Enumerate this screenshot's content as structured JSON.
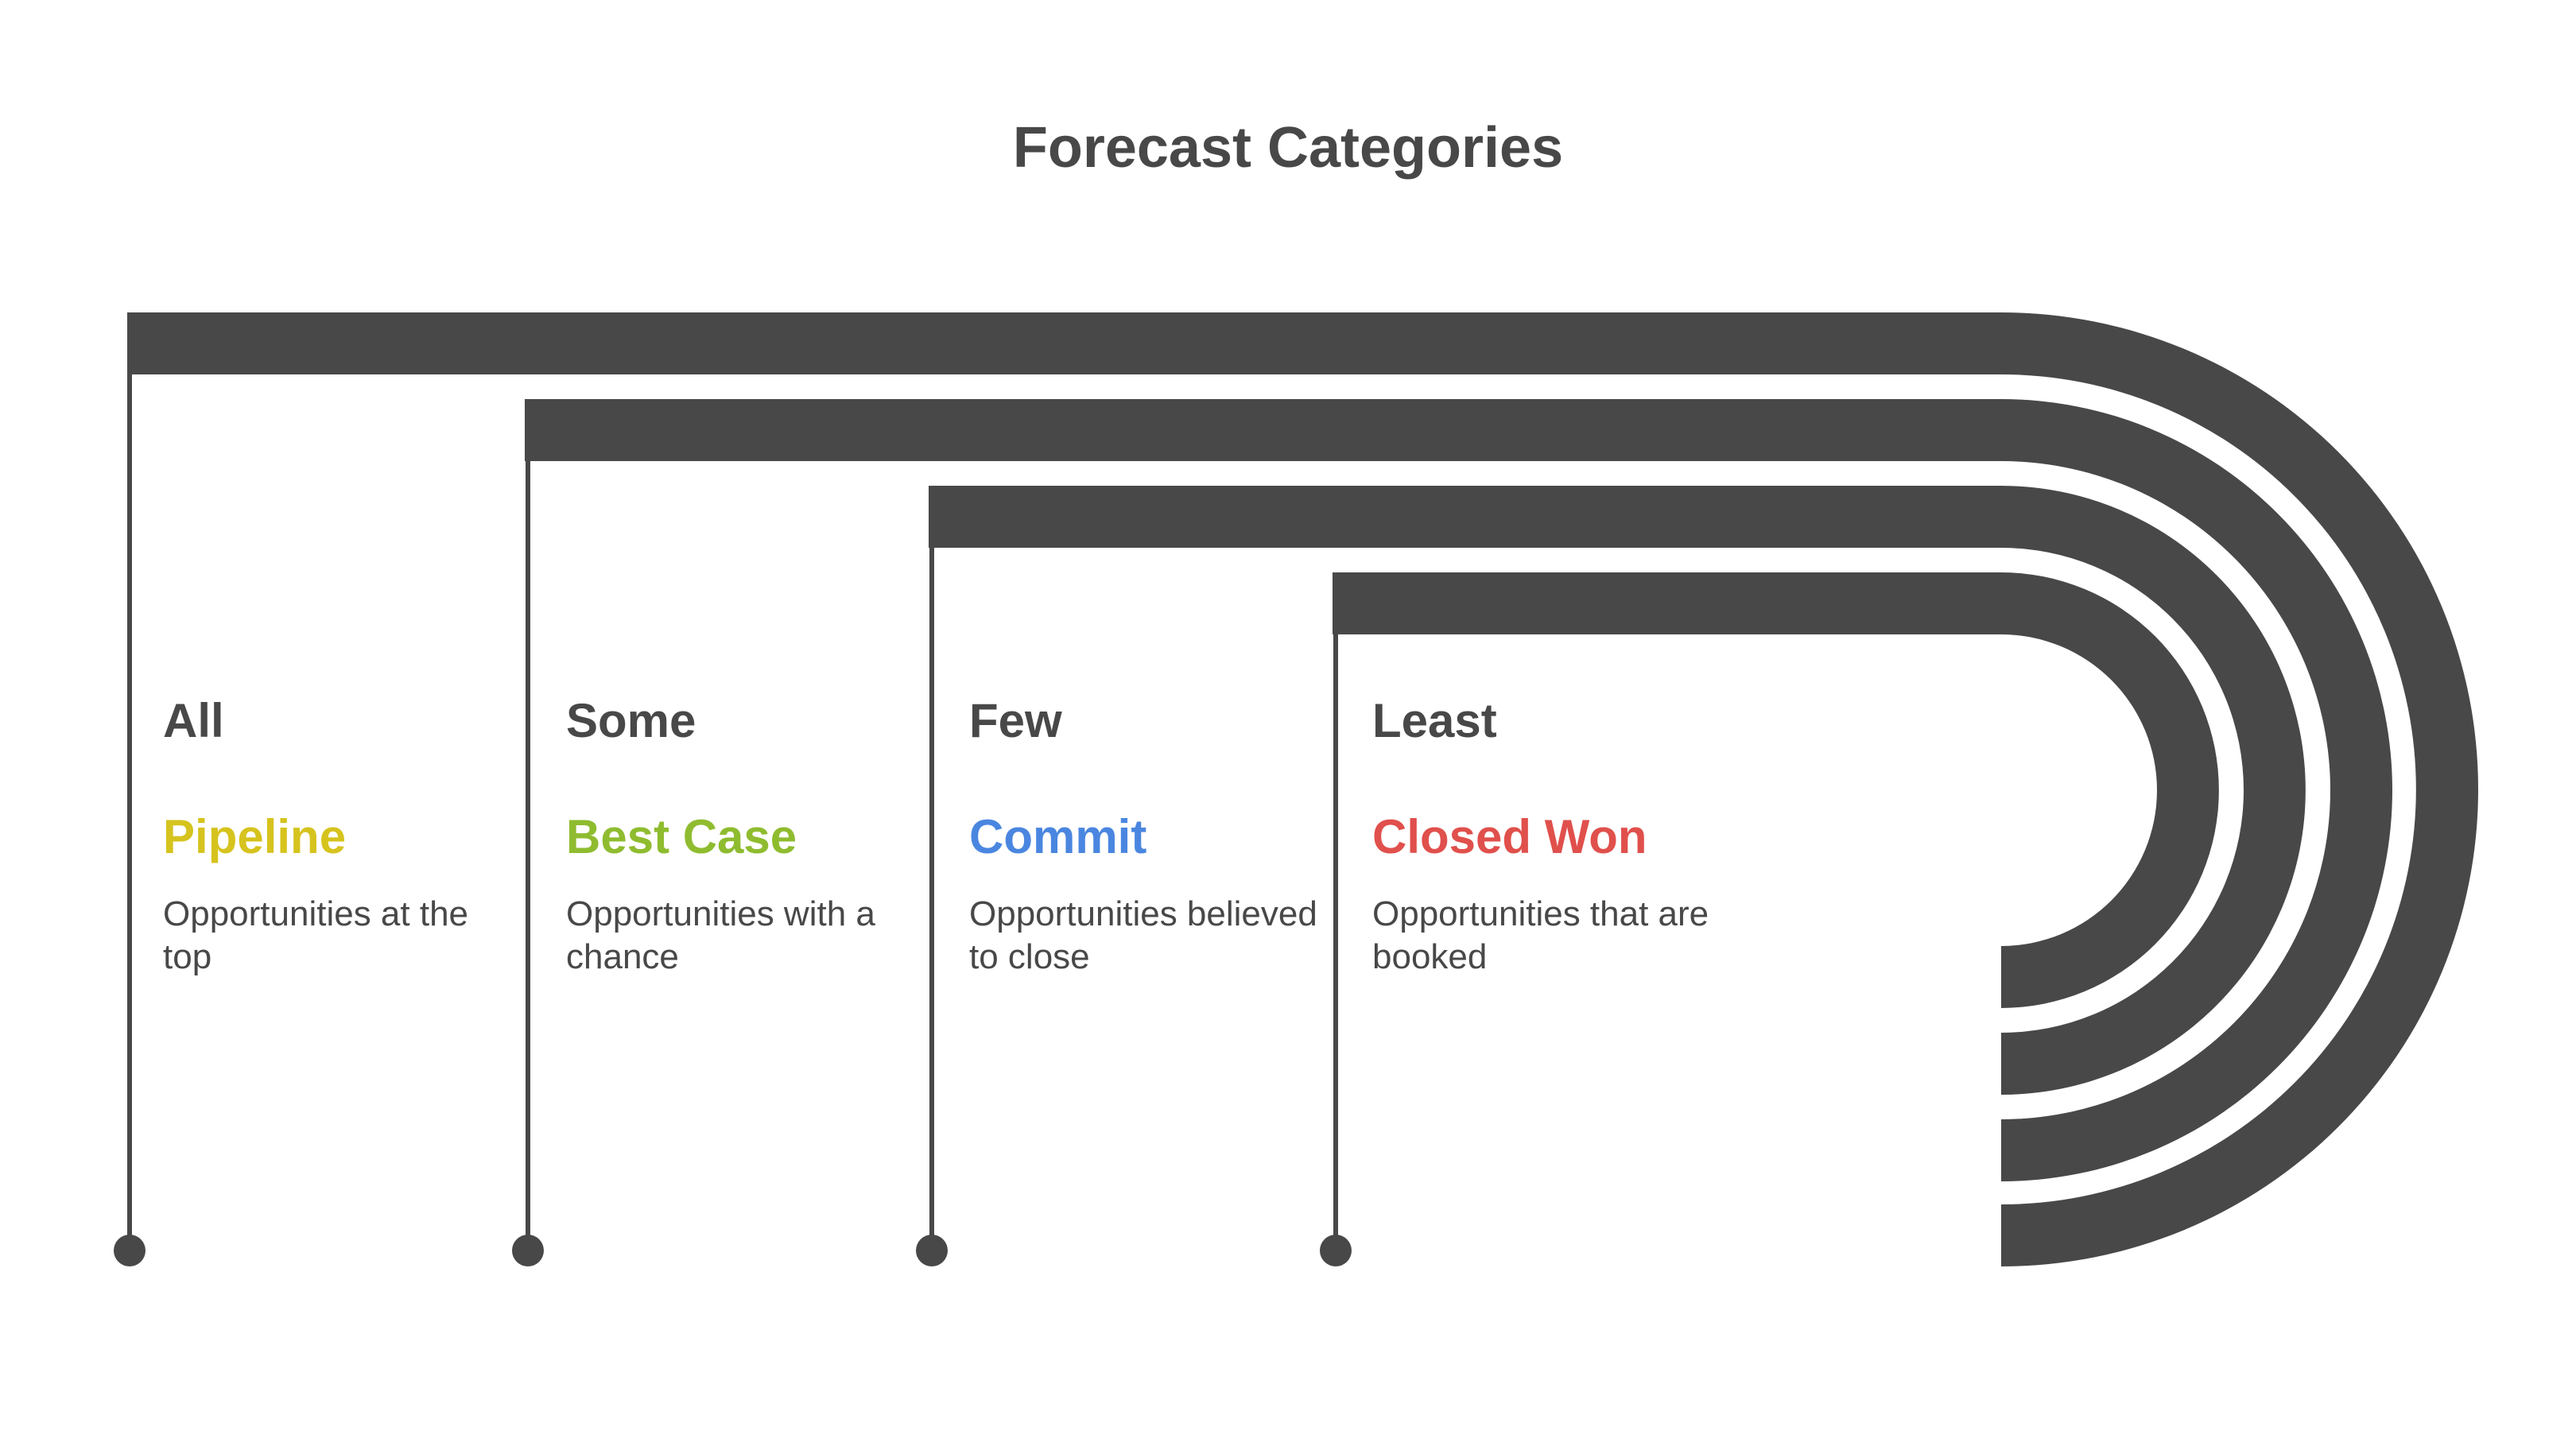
{
  "title": "Forecast Categories",
  "stages": [
    {
      "level": "All",
      "category": "Pipeline",
      "description": "Opportunities at the top",
      "color": "#d6c31d"
    },
    {
      "level": "Some",
      "category": "Best Case",
      "description": "Opportunities with a chance",
      "color": "#8fbc2f"
    },
    {
      "level": "Few",
      "category": "Commit",
      "description": "Opportunities believed to close",
      "color": "#4a86e0"
    },
    {
      "level": "Least",
      "category": "Closed Won",
      "description": "Opportunities that are booked",
      "color": "#e0504c"
    }
  ],
  "colors": {
    "band": "#484848",
    "text": "#484848",
    "background": "#ffffff"
  }
}
